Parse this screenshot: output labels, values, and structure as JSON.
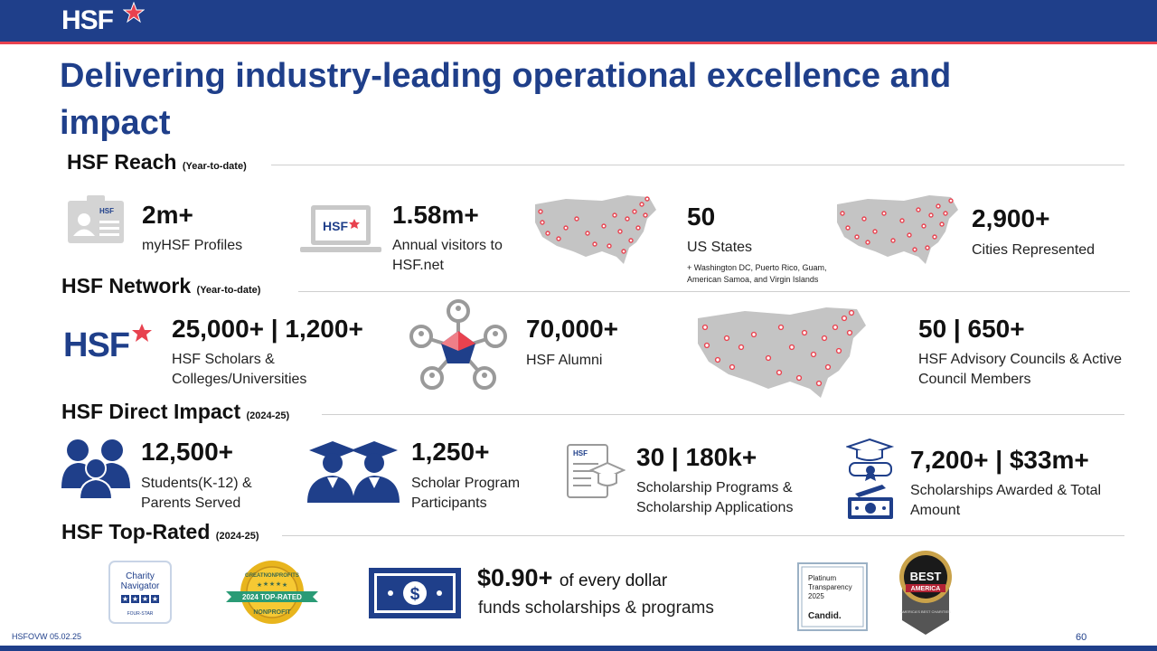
{
  "header": {
    "logo_text": "HSF"
  },
  "title": "Delivering industry-leading operational excellence and impact",
  "reach": {
    "heading": "HSF Reach",
    "qualifier": "(Year-to-date)",
    "stats": [
      {
        "value": "2m+",
        "label": "myHSF Profiles"
      },
      {
        "value": "1.58m+",
        "label": "Annual visitors to HSF.net"
      },
      {
        "value": "50",
        "label": "US States",
        "note": "+ Washington DC, Puerto Rico, Guam, American Samoa, and Virgin Islands"
      },
      {
        "value": "2,900+",
        "label": "Cities Represented"
      }
    ]
  },
  "network": {
    "heading": "HSF Network",
    "qualifier": "(Year-to-date)",
    "stats": [
      {
        "value": "25,000+ | 1,200+",
        "label": "HSF Scholars & Colleges/Universities"
      },
      {
        "value": "70,000+",
        "label": "HSF Alumni"
      },
      {
        "value": "50 | 650+",
        "label": "HSF Advisory Councils & Active Council Members"
      }
    ]
  },
  "direct": {
    "heading": "HSF Direct Impact",
    "qualifier": "(2024-25)",
    "stats": [
      {
        "value": "12,500+",
        "label": "Students(K-12) & Parents Served"
      },
      {
        "value": "1,250+",
        "label": "Scholar Program Participants"
      },
      {
        "value": "30 | 180k+",
        "label": "Scholarship Programs & Scholarship Applications"
      },
      {
        "value": "7,200+ | $33m+",
        "label": "Scholarships Awarded & Total Amount"
      }
    ]
  },
  "toprated": {
    "heading": "HSF Top-Rated",
    "qualifier": "(2024-25)",
    "dollar_value": "$0.90+",
    "dollar_tail": "of every dollar",
    "dollar_sub": "funds scholarships & programs",
    "badges": {
      "charity_navigator": [
        "Charity",
        "Navigator",
        "FOUR-STAR"
      ],
      "great_nonprofits": [
        "GREATNONPROFITS",
        "2024 TOP-RATED",
        "NONPROFIT"
      ],
      "candid": [
        "Platinum",
        "Transparency",
        "2025",
        "Candid."
      ],
      "best": [
        "BEST",
        "AMERICA",
        "AMERICA'S BEST CHARITIES"
      ]
    }
  },
  "footer": {
    "code": "HSFOVW 05.02.25",
    "page": "60"
  },
  "colors": {
    "navy": "#1f3f8a",
    "red": "#e8424f",
    "gray": "#c4c4c4"
  }
}
